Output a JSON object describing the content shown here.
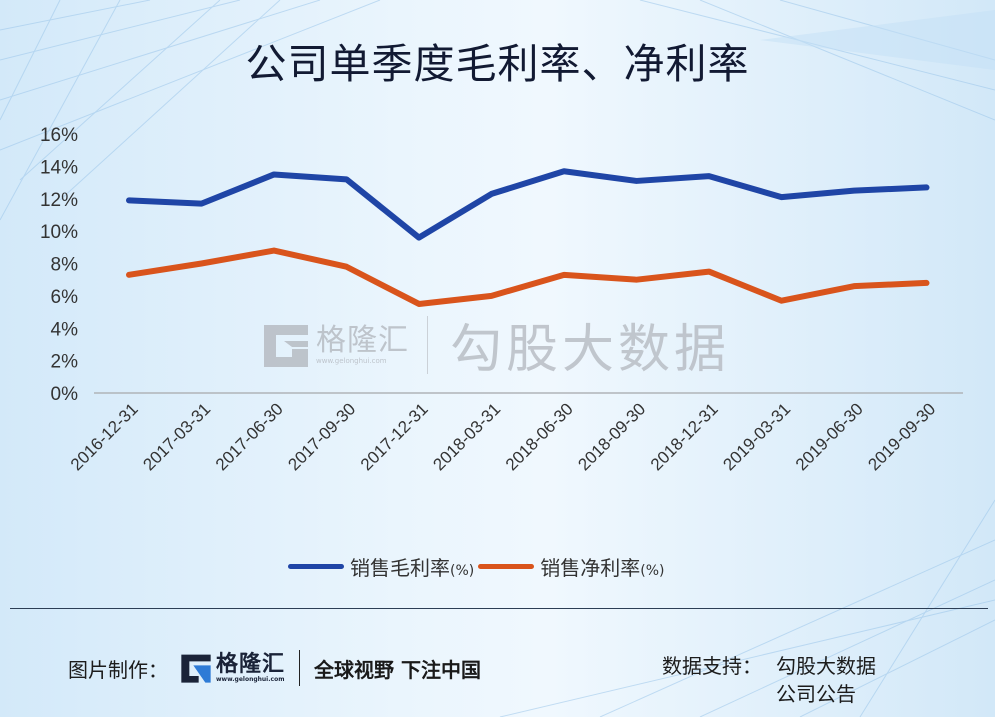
{
  "title": "公司单季度毛利率、净利率",
  "chart_data": {
    "type": "line",
    "title": "公司单季度毛利率、净利率",
    "xlabel": "",
    "ylabel": "",
    "ylim": [
      0,
      16
    ],
    "yticks": [
      "0%",
      "2%",
      "4%",
      "6%",
      "8%",
      "10%",
      "12%",
      "14%",
      "16%"
    ],
    "grid": false,
    "legend_position": "bottom",
    "categories": [
      "2016-12-31",
      "2017-03-31",
      "2017-06-30",
      "2017-09-30",
      "2017-12-31",
      "2018-03-31",
      "2018-06-30",
      "2018-09-30",
      "2018-12-31",
      "2019-03-31",
      "2019-06-30",
      "2019-09-30"
    ],
    "series": [
      {
        "name": "销售毛利率(%)",
        "color": "#1f45a6",
        "values": [
          11.9,
          11.7,
          13.5,
          13.2,
          9.6,
          12.3,
          13.7,
          13.1,
          13.4,
          12.1,
          12.5,
          12.7
        ]
      },
      {
        "name": "销售净利率(%)",
        "color": "#d9541c",
        "values": [
          7.3,
          8.0,
          8.8,
          7.8,
          5.5,
          6.0,
          7.3,
          7.0,
          7.5,
          5.7,
          6.6,
          6.8
        ]
      }
    ]
  },
  "legend": [
    {
      "label": "销售毛利率",
      "suffix": "(%)",
      "color": "#1f45a6"
    },
    {
      "label": "销售净利率",
      "suffix": "(%)",
      "color": "#d9541c"
    }
  ],
  "watermark": {
    "brand": "格隆汇",
    "url": "www.gelonghui.com",
    "text": "勾股大数据"
  },
  "footer": {
    "made_by_label": "图片制作：",
    "brand": "格隆汇",
    "brand_url": "www.gelonghui.com",
    "slogan": "全球视野 下注中国",
    "source_label": "数据支持：",
    "sources": [
      "勾股大数据",
      "公司公告"
    ]
  }
}
